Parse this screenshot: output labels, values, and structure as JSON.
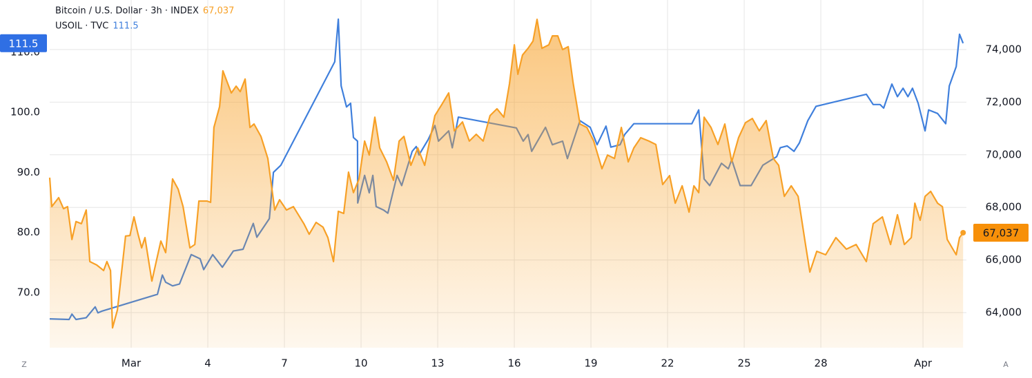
{
  "chart_data": {
    "type": "line",
    "xlim": [
      -3.19,
      32.7
    ],
    "xticks": [
      {
        "value": 0,
        "label": "Mar"
      },
      {
        "value": 3,
        "label": "4"
      },
      {
        "value": 6,
        "label": "7"
      },
      {
        "value": 9,
        "label": "10"
      },
      {
        "value": 12,
        "label": "13"
      },
      {
        "value": 15,
        "label": "16"
      },
      {
        "value": 18,
        "label": "19"
      },
      {
        "value": 21,
        "label": "22"
      },
      {
        "value": 24,
        "label": "25"
      },
      {
        "value": 27,
        "label": "28"
      },
      {
        "value": 31,
        "label": "Apr"
      }
    ],
    "ylim": [
      60.8,
      118.7
    ],
    "yticks": [
      {
        "value": 70,
        "label": "70.0"
      },
      {
        "value": 80,
        "label": "80.0"
      },
      {
        "value": 90,
        "label": "90.0"
      },
      {
        "value": 100,
        "label": "100.0"
      },
      {
        "value": 110,
        "label": "110.0"
      }
    ],
    "y2lim": [
      62665,
      75885
    ],
    "y2ticks": [
      {
        "value": 64000,
        "label": "64,000"
      },
      {
        "value": 66000,
        "label": "66,000"
      },
      {
        "value": 68000,
        "label": "68,000"
      },
      {
        "value": 70000,
        "label": "70,000"
      },
      {
        "value": 72000,
        "label": "72,000"
      },
      {
        "value": 74000,
        "label": "74,000"
      }
    ],
    "grid": true,
    "buttons": [
      "Z",
      "A"
    ],
    "series": [
      {
        "name": "USOIL · TVC",
        "legend_value": "111.5",
        "color": "#3f7fdc",
        "axis": "y",
        "x": [
          -3.19,
          -2.43,
          -2.32,
          -2.16,
          -1.76,
          -1.41,
          -1.3,
          -1.14,
          1.03,
          1.22,
          1.35,
          1.62,
          1.89,
          2.35,
          2.7,
          2.84,
          3.19,
          3.57,
          4.0,
          4.38,
          4.78,
          4.92,
          5.41,
          5.57,
          5.86,
          7.97,
          8.11,
          8.22,
          8.43,
          8.59,
          8.7,
          8.86,
          8.87,
          9.14,
          9.32,
          9.46,
          9.59,
          9.89,
          10.05,
          10.41,
          10.59,
          11.0,
          11.16,
          11.27,
          11.62,
          11.89,
          12.03,
          12.43,
          12.57,
          12.81,
          15.08,
          15.35,
          15.54,
          15.68,
          16.22,
          16.49,
          16.89,
          17.08,
          17.57,
          17.97,
          18.24,
          18.59,
          18.78,
          19.14,
          19.32,
          19.68,
          21.95,
          22.22,
          22.43,
          22.65,
          23.11,
          23.38,
          23.51,
          23.84,
          24.27,
          24.73,
          25.27,
          25.41,
          25.68,
          25.95,
          26.16,
          26.49,
          26.81,
          28.78,
          29.05,
          29.32,
          29.46,
          29.78,
          30.0,
          30.22,
          30.41,
          30.59,
          30.81,
          31.08,
          31.22,
          31.57,
          31.89,
          32.03,
          32.3,
          32.43,
          32.57
        ],
        "values": [
          65.6,
          65.5,
          66.4,
          65.5,
          65.8,
          67.6,
          66.6,
          66.9,
          69.7,
          72.9,
          71.7,
          71.1,
          71.4,
          76.3,
          75.6,
          73.8,
          76.3,
          74.2,
          76.9,
          77.2,
          81.5,
          79.2,
          82.3,
          90.0,
          91.2,
          108.4,
          115.5,
          104.4,
          100.9,
          101.5,
          95.8,
          95.2,
          84.9,
          89.5,
          86.6,
          89.5,
          84.3,
          83.7,
          83.2,
          89.5,
          87.8,
          93.5,
          94.3,
          92.9,
          95.4,
          97.8,
          95.2,
          96.9,
          94.1,
          99.2,
          97.4,
          95.2,
          96.3,
          93.5,
          97.5,
          94.6,
          95.2,
          92.3,
          98.6,
          97.5,
          94.6,
          97.7,
          94.2,
          94.6,
          96.3,
          98.1,
          98.1,
          100.4,
          88.9,
          87.8,
          91.5,
          90.6,
          92.1,
          87.8,
          87.8,
          91.2,
          92.6,
          94.1,
          94.4,
          93.5,
          94.9,
          98.6,
          101.0,
          103.0,
          101.3,
          101.3,
          100.7,
          104.7,
          102.6,
          104.0,
          102.6,
          104.0,
          101.5,
          96.9,
          100.4,
          99.8,
          98.1,
          104.4,
          107.6,
          113.0,
          111.5
        ]
      },
      {
        "name": "Bitcoin / U.S. Dollar · 3h · INDEX",
        "legend_value": "67,037",
        "color": "#f7a026",
        "axis": "y2",
        "x": [
          -3.19,
          -3.11,
          -2.84,
          -2.65,
          -2.49,
          -2.32,
          -2.16,
          -1.95,
          -1.76,
          -1.62,
          -1.35,
          -1.08,
          -0.95,
          -0.81,
          -0.73,
          -0.54,
          -0.22,
          -0.05,
          0.11,
          0.27,
          0.41,
          0.54,
          0.81,
          1.16,
          1.35,
          1.62,
          1.84,
          2.03,
          2.3,
          2.49,
          2.65,
          2.97,
          3.11,
          3.24,
          3.46,
          3.59,
          3.92,
          4.11,
          4.27,
          4.46,
          4.65,
          4.81,
          5.08,
          5.35,
          5.62,
          5.81,
          6.08,
          6.35,
          6.76,
          6.97,
          7.24,
          7.51,
          7.7,
          7.92,
          8.11,
          8.32,
          8.51,
          8.7,
          8.92,
          9.14,
          9.32,
          9.54,
          9.73,
          10.0,
          10.27,
          10.49,
          10.68,
          10.95,
          11.22,
          11.49,
          11.89,
          12.16,
          12.43,
          12.65,
          12.97,
          13.24,
          13.51,
          13.78,
          14.05,
          14.32,
          14.59,
          14.81,
          15.0,
          15.14,
          15.32,
          15.54,
          15.73,
          15.89,
          16.08,
          16.35,
          16.49,
          16.7,
          16.89,
          17.11,
          17.3,
          17.57,
          17.84,
          18.11,
          18.43,
          18.65,
          18.92,
          19.19,
          19.46,
          19.68,
          19.95,
          20.27,
          20.54,
          20.81,
          21.08,
          21.3,
          21.57,
          21.84,
          22.03,
          22.22,
          22.43,
          22.7,
          22.97,
          23.24,
          23.51,
          23.78,
          24.05,
          24.32,
          24.59,
          24.86,
          25.14,
          25.35,
          25.57,
          25.84,
          26.11,
          26.38,
          26.57,
          26.84,
          27.19,
          27.59,
          28.0,
          28.38,
          28.78,
          29.05,
          29.41,
          29.73,
          30.0,
          30.27,
          30.54,
          30.68,
          30.89,
          31.08,
          31.3,
          31.57,
          31.76,
          31.95,
          32.3,
          32.43,
          32.57
        ],
        "values": [
          69130,
          68030,
          68370,
          67950,
          68030,
          66780,
          67460,
          67380,
          67900,
          65940,
          65810,
          65600,
          65940,
          65600,
          63420,
          64100,
          66910,
          66930,
          67640,
          66980,
          66460,
          66850,
          65200,
          66720,
          66280,
          69080,
          68690,
          68030,
          66460,
          66590,
          68240,
          68240,
          68190,
          71040,
          71830,
          73190,
          72350,
          72610,
          72400,
          72880,
          71040,
          71170,
          70700,
          69860,
          67900,
          68290,
          67900,
          68030,
          67380,
          66980,
          67430,
          67250,
          66850,
          65940,
          67850,
          67770,
          69340,
          68560,
          69080,
          70520,
          69990,
          71430,
          70260,
          69730,
          69030,
          70520,
          70700,
          69600,
          70260,
          69600,
          71490,
          71910,
          72350,
          70910,
          71250,
          70520,
          70780,
          70520,
          71490,
          71750,
          71430,
          72690,
          74180,
          73060,
          73790,
          74050,
          74320,
          75150,
          74050,
          74180,
          74520,
          74520,
          74000,
          74110,
          72740,
          71170,
          71040,
          70520,
          69470,
          69990,
          69860,
          71040,
          69730,
          70260,
          70650,
          70520,
          70390,
          68870,
          69210,
          68160,
          68820,
          67820,
          68820,
          68560,
          71430,
          71040,
          70390,
          71170,
          69730,
          70650,
          71220,
          71380,
          70910,
          71300,
          69860,
          69600,
          68420,
          68820,
          68420,
          66720,
          65540,
          66330,
          66200,
          66850,
          66410,
          66590,
          65940,
          67380,
          67640,
          66590,
          67720,
          66590,
          66850,
          68160,
          67510,
          68420,
          68610,
          68160,
          68030,
          66780,
          66200,
          66850,
          67037
        ]
      }
    ]
  }
}
